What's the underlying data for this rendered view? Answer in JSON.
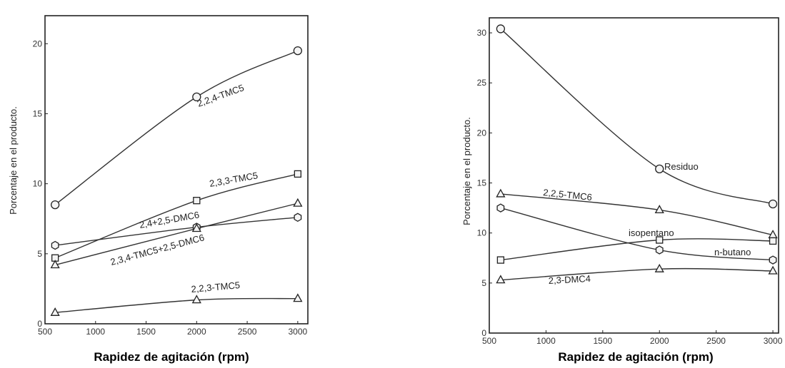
{
  "chart_data": [
    {
      "type": "line",
      "xlabel": "Rapidez de agitación (rpm)",
      "ylabel": "Porcentaje en el producto.",
      "xlim": [
        500,
        3100
      ],
      "ylim": [
        0,
        22
      ],
      "xticks": [
        "500",
        "1000",
        "1500",
        "2000",
        "2500",
        "3000"
      ],
      "yticks": [
        "0",
        "5",
        "10",
        "15",
        "20"
      ],
      "x": [
        600,
        2000,
        3000
      ],
      "series": [
        {
          "name": "2,2,4-TMC5",
          "marker": "circle",
          "values": [
            8.5,
            16.2,
            19.5
          ]
        },
        {
          "name": "2,3,3-TMC5",
          "marker": "square",
          "values": [
            4.7,
            8.8,
            10.7
          ]
        },
        {
          "name": "2,4+2,5-DMC6",
          "marker": "hexagon",
          "values": [
            5.6,
            6.9,
            7.6
          ]
        },
        {
          "name": "2,3,4-TMC5+2,5-DMC6",
          "marker": "triangle",
          "values": [
            4.2,
            6.8,
            8.6
          ]
        },
        {
          "name": "2,2,3-TMC5",
          "marker": "triangle",
          "values": [
            0.8,
            1.7,
            1.8
          ]
        }
      ]
    },
    {
      "type": "line",
      "xlabel": "Rapidez de agitación (rpm)",
      "ylabel": "Porcentaje en el producto.",
      "xlim": [
        500,
        3050
      ],
      "ylim": [
        0,
        31.5
      ],
      "xticks": [
        "500",
        "1000",
        "1500",
        "2000",
        "2500",
        "3000"
      ],
      "yticks": [
        "0",
        "5",
        "10",
        "15",
        "20",
        "25",
        "30"
      ],
      "x": [
        600,
        2000,
        3000
      ],
      "series": [
        {
          "name": "Residuo",
          "marker": "circle",
          "values": [
            30.4,
            16.4,
            12.9
          ]
        },
        {
          "name": "2,2,5-TMC6",
          "marker": "triangle",
          "values": [
            13.9,
            12.3,
            9.8
          ]
        },
        {
          "name": "isopentano",
          "marker": "square",
          "values": [
            7.3,
            9.3,
            9.2
          ]
        },
        {
          "name": "n-butano",
          "marker": "hexagon",
          "values": [
            12.5,
            8.3,
            7.3
          ]
        },
        {
          "name": "2,3-DMC4",
          "marker": "triangle",
          "values": [
            5.3,
            6.4,
            6.2
          ]
        }
      ]
    }
  ]
}
